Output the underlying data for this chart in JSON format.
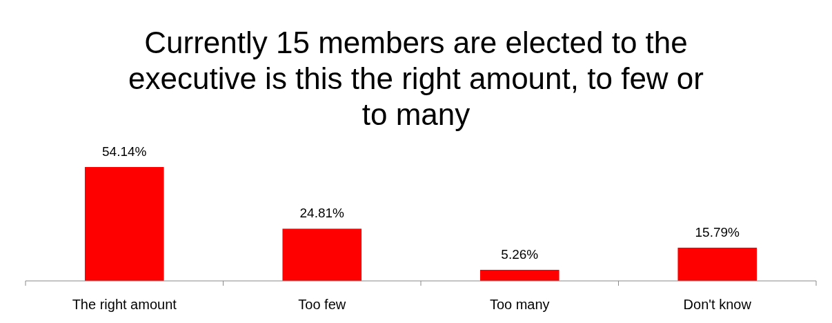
{
  "chart_data": {
    "type": "bar",
    "title": "Currently 15 members are elected to the executive is this the right amount, to few or to many",
    "categories": [
      "The right amount",
      "Too few",
      "Too many",
      "Don't know"
    ],
    "values": [
      54.14,
      24.81,
      5.26,
      15.79
    ],
    "value_labels": [
      "54.14%",
      "24.81%",
      "5.26%",
      "15.79%"
    ],
    "color": "#ff0000"
  }
}
